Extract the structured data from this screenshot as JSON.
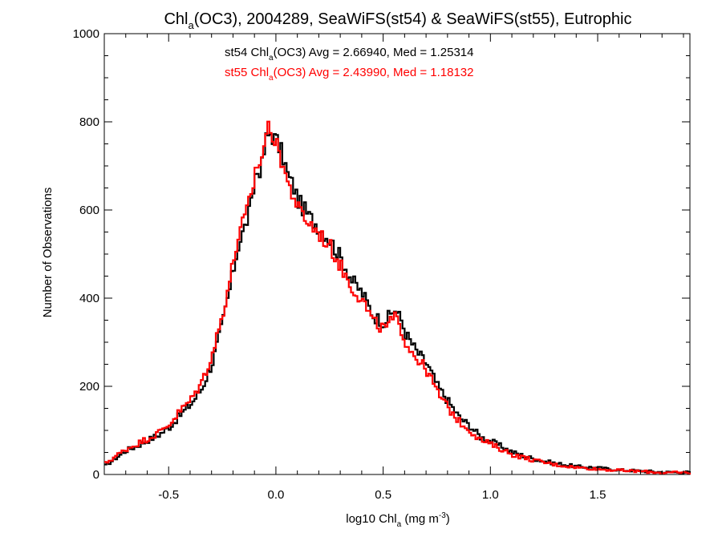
{
  "chart_data": {
    "type": "line",
    "title": {
      "prefix": "Chl",
      "sub": "a",
      "suffix": "(OC3), 2004289, SeaWiFS(st54) & SeaWiFS(st55), Eutrophic"
    },
    "xlabel": {
      "prefix": "log10 Chl",
      "sub": "a",
      "mid": " (mg m",
      "sup": "-3",
      "suffix": ")"
    },
    "ylabel": "Number of Observations",
    "xlim": [
      -0.8,
      1.93
    ],
    "ylim": [
      0,
      1000
    ],
    "xticks": [
      -0.5,
      0.0,
      0.5,
      1.0,
      1.5
    ],
    "xtick_labels": [
      "-0.5",
      "0.0",
      "0.5",
      "1.0",
      "1.5"
    ],
    "yticks": [
      0,
      200,
      400,
      600,
      800,
      1000
    ],
    "ytick_labels": [
      "0",
      "200",
      "400",
      "600",
      "800",
      "1000"
    ],
    "grid": false,
    "step_style": "histogram",
    "series": [
      {
        "name": "st54",
        "color": "#000000",
        "stats": {
          "prefix": "st54 Chl",
          "sub": "a",
          "suffix": "(OC3) Avg = 2.66940, Med = 1.25314"
        },
        "points": [
          [
            -0.8,
            20
          ],
          [
            -0.75,
            38
          ],
          [
            -0.7,
            55
          ],
          [
            -0.65,
            65
          ],
          [
            -0.6,
            78
          ],
          [
            -0.55,
            90
          ],
          [
            -0.5,
            108
          ],
          [
            -0.45,
            135
          ],
          [
            -0.4,
            160
          ],
          [
            -0.35,
            195
          ],
          [
            -0.3,
            255
          ],
          [
            -0.26,
            330
          ],
          [
            -0.22,
            420
          ],
          [
            -0.2,
            470
          ],
          [
            -0.18,
            520
          ],
          [
            -0.15,
            560
          ],
          [
            -0.12,
            610
          ],
          [
            -0.1,
            680
          ],
          [
            -0.07,
            700
          ],
          [
            -0.05,
            760
          ],
          [
            -0.03,
            775
          ],
          [
            0.0,
            755
          ],
          [
            0.03,
            720
          ],
          [
            0.05,
            680
          ],
          [
            0.08,
            650
          ],
          [
            0.1,
            620
          ],
          [
            0.15,
            585
          ],
          [
            0.2,
            560
          ],
          [
            0.25,
            530
          ],
          [
            0.3,
            490
          ],
          [
            0.35,
            440
          ],
          [
            0.4,
            410
          ],
          [
            0.45,
            360
          ],
          [
            0.5,
            345
          ],
          [
            0.55,
            375
          ],
          [
            0.58,
            350
          ],
          [
            0.6,
            320
          ],
          [
            0.65,
            280
          ],
          [
            0.7,
            250
          ],
          [
            0.75,
            200
          ],
          [
            0.8,
            165
          ],
          [
            0.85,
            130
          ],
          [
            0.9,
            110
          ],
          [
            0.95,
            85
          ],
          [
            1.0,
            75
          ],
          [
            1.1,
            50
          ],
          [
            1.2,
            35
          ],
          [
            1.3,
            25
          ],
          [
            1.4,
            18
          ],
          [
            1.5,
            15
          ],
          [
            1.6,
            10
          ],
          [
            1.7,
            8
          ],
          [
            1.8,
            5
          ],
          [
            1.93,
            5
          ]
        ]
      },
      {
        "name": "st55",
        "color": "#ff0000",
        "stats": {
          "prefix": "st55 Chl",
          "sub": "a",
          "suffix": "(OC3) Avg = 2.43990, Med = 1.18132"
        },
        "points": [
          [
            -0.8,
            25
          ],
          [
            -0.75,
            42
          ],
          [
            -0.7,
            58
          ],
          [
            -0.65,
            70
          ],
          [
            -0.6,
            82
          ],
          [
            -0.55,
            95
          ],
          [
            -0.5,
            115
          ],
          [
            -0.45,
            145
          ],
          [
            -0.4,
            170
          ],
          [
            -0.35,
            210
          ],
          [
            -0.3,
            275
          ],
          [
            -0.26,
            350
          ],
          [
            -0.22,
            440
          ],
          [
            -0.2,
            490
          ],
          [
            -0.18,
            540
          ],
          [
            -0.15,
            580
          ],
          [
            -0.12,
            630
          ],
          [
            -0.1,
            690
          ],
          [
            -0.07,
            720
          ],
          [
            -0.05,
            775
          ],
          [
            -0.03,
            790
          ],
          [
            0.0,
            740
          ],
          [
            0.03,
            705
          ],
          [
            0.05,
            660
          ],
          [
            0.08,
            630
          ],
          [
            0.1,
            600
          ],
          [
            0.15,
            570
          ],
          [
            0.2,
            545
          ],
          [
            0.25,
            515
          ],
          [
            0.3,
            470
          ],
          [
            0.35,
            425
          ],
          [
            0.4,
            395
          ],
          [
            0.45,
            345
          ],
          [
            0.5,
            330
          ],
          [
            0.55,
            355
          ],
          [
            0.58,
            330
          ],
          [
            0.6,
            300
          ],
          [
            0.65,
            265
          ],
          [
            0.7,
            235
          ],
          [
            0.75,
            185
          ],
          [
            0.8,
            150
          ],
          [
            0.85,
            120
          ],
          [
            0.9,
            100
          ],
          [
            0.95,
            78
          ],
          [
            1.0,
            68
          ],
          [
            1.1,
            45
          ],
          [
            1.2,
            32
          ],
          [
            1.3,
            22
          ],
          [
            1.4,
            16
          ],
          [
            1.5,
            12
          ],
          [
            1.6,
            9
          ],
          [
            1.7,
            7
          ],
          [
            1.8,
            4
          ],
          [
            1.93,
            4
          ]
        ]
      }
    ]
  }
}
